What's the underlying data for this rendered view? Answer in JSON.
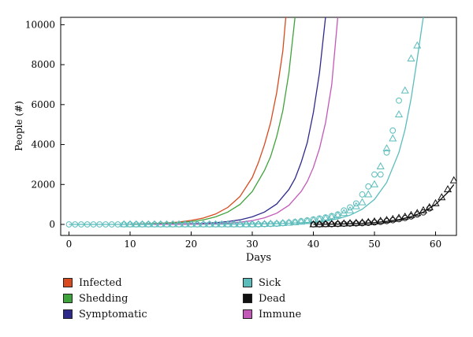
{
  "chart_data": {
    "type": "line",
    "xlabel": "Days",
    "ylabel": "People (#)",
    "xlim": [
      -1,
      63.5
    ],
    "ylim": [
      -250,
      10400
    ],
    "x_ticks": [
      0,
      10,
      20,
      30,
      40,
      50,
      60
    ],
    "y_ticks": [
      0,
      2000,
      4000,
      6000,
      8000,
      10000
    ],
    "grid": false,
    "legend_position": "bottom",
    "series": [
      {
        "name": "Infected",
        "color": "#d94a1e",
        "kind": "line",
        "x": [
          10,
          12,
          14,
          16,
          18,
          20,
          22,
          24,
          26,
          28,
          30,
          31,
          32,
          33,
          34,
          35,
          35.5
        ],
        "y": [
          10,
          25,
          45,
          75,
          120,
          200,
          320,
          520,
          850,
          1400,
          2350,
          3100,
          4000,
          5100,
          6600,
          8700,
          10400
        ]
      },
      {
        "name": "Shedding",
        "color": "#3fa33b",
        "kind": "line",
        "x": [
          10,
          12,
          14,
          16,
          18,
          20,
          22,
          24,
          26,
          28,
          30,
          32,
          33,
          34,
          35,
          36,
          37
        ],
        "y": [
          5,
          15,
          30,
          50,
          85,
          140,
          230,
          380,
          620,
          1000,
          1650,
          2700,
          3400,
          4400,
          5700,
          7600,
          10400
        ]
      },
      {
        "name": "Symptomatic",
        "color": "#2e2a8c",
        "kind": "line",
        "x": [
          12,
          14,
          16,
          18,
          20,
          22,
          24,
          26,
          28,
          30,
          32,
          34,
          36,
          37,
          38,
          39,
          40,
          41,
          42
        ],
        "y": [
          2,
          5,
          10,
          18,
          30,
          50,
          85,
          140,
          230,
          380,
          620,
          1020,
          1750,
          2300,
          3100,
          4100,
          5600,
          7600,
          10400
        ]
      },
      {
        "name": "Sick",
        "color": "#5bbcbc",
        "kind": "line",
        "x": [
          0,
          5,
          10,
          15,
          20,
          25,
          30,
          35,
          40,
          42,
          44,
          46,
          48,
          50,
          52,
          54,
          55,
          56,
          57,
          58
        ],
        "y": [
          0,
          0,
          0,
          2,
          5,
          10,
          20,
          45,
          110,
          170,
          280,
          460,
          760,
          1250,
          2100,
          3600,
          4750,
          6300,
          8300,
          10400
        ]
      },
      {
        "name": "Dead",
        "color": "#111111",
        "kind": "line",
        "x": [
          40,
          44,
          48,
          50,
          52,
          54,
          56,
          58,
          60,
          62,
          63
        ],
        "y": [
          0,
          15,
          50,
          90,
          150,
          240,
          390,
          620,
          1000,
          1600,
          2000
        ]
      },
      {
        "name": "Immune",
        "color": "#c458b8",
        "kind": "line",
        "x": [
          14,
          16,
          18,
          20,
          22,
          24,
          26,
          28,
          30,
          32,
          34,
          36,
          38,
          39,
          40,
          41,
          42,
          43,
          44
        ],
        "y": [
          1,
          3,
          6,
          12,
          22,
          38,
          65,
          110,
          190,
          330,
          560,
          960,
          1650,
          2150,
          2850,
          3800,
          5100,
          7000,
          10400
        ]
      },
      {
        "name": "",
        "color": "#5bbcbc",
        "kind": "circle",
        "x": [
          0,
          1,
          2,
          3,
          4,
          5,
          6,
          7,
          8,
          9,
          10,
          11,
          12,
          13,
          14,
          15,
          16,
          17,
          18,
          19,
          20,
          21,
          22,
          23,
          24,
          25,
          26,
          27,
          28,
          29,
          30,
          31,
          32,
          33,
          34,
          35,
          36,
          37,
          38,
          39,
          40,
          41,
          42,
          43,
          44,
          45,
          46,
          47,
          48,
          49,
          50,
          51,
          52,
          53,
          54
        ],
        "y": [
          0,
          0,
          0,
          0,
          0,
          0,
          0,
          0,
          0,
          0,
          0,
          0,
          0,
          0,
          0,
          0,
          0,
          0,
          0,
          0,
          0,
          0,
          0,
          0,
          0,
          0,
          0,
          0,
          0,
          0,
          0,
          0,
          10,
          20,
          30,
          60,
          90,
          120,
          160,
          200,
          250,
          300,
          350,
          420,
          500,
          700,
          850,
          1050,
          1500,
          1900,
          2500,
          2500,
          3600,
          4700,
          6200
        ]
      },
      {
        "name": "",
        "color": "#5bbcbc",
        "kind": "triangle",
        "x": [
          9,
          10,
          11,
          12,
          13,
          14,
          15,
          16,
          17,
          18,
          19,
          20,
          21,
          22,
          23,
          24,
          25,
          26,
          27,
          28,
          29,
          30,
          31,
          32,
          33,
          34,
          35,
          36,
          37,
          38,
          39,
          40,
          41,
          42,
          43,
          44,
          45,
          46,
          47,
          48,
          49,
          50,
          51,
          52,
          53,
          54,
          55,
          56,
          57
        ],
        "y": [
          0,
          0,
          0,
          0,
          0,
          0,
          0,
          0,
          0,
          0,
          0,
          0,
          0,
          0,
          0,
          0,
          0,
          0,
          0,
          0,
          0,
          0,
          10,
          20,
          30,
          40,
          60,
          80,
          100,
          130,
          160,
          200,
          240,
          300,
          370,
          450,
          560,
          700,
          900,
          1100,
          1500,
          2000,
          2900,
          3800,
          4300,
          5500,
          6700,
          8300,
          8950
        ]
      },
      {
        "name": "",
        "color": "#111111",
        "kind": "circle",
        "x": [
          40,
          41,
          42,
          43,
          44,
          45,
          46,
          47,
          48,
          49,
          50,
          51,
          52,
          53,
          54,
          55,
          56,
          57,
          58,
          59
        ],
        "y": [
          0,
          0,
          10,
          10,
          20,
          30,
          40,
          50,
          60,
          80,
          100,
          130,
          170,
          210,
          260,
          320,
          400,
          500,
          600,
          800
        ]
      },
      {
        "name": "",
        "color": "#111111",
        "kind": "triangle",
        "x": [
          40,
          41,
          42,
          43,
          44,
          45,
          46,
          47,
          48,
          49,
          50,
          51,
          52,
          53,
          54,
          55,
          56,
          57,
          58,
          59,
          60,
          61,
          62,
          63
        ],
        "y": [
          0,
          5,
          10,
          20,
          30,
          40,
          55,
          70,
          90,
          110,
          140,
          170,
          210,
          260,
          320,
          380,
          460,
          560,
          700,
          850,
          1050,
          1350,
          1750,
          2200
        ]
      }
    ],
    "legend": [
      {
        "label": "Infected",
        "color": "#d94a1e"
      },
      {
        "label": "Sick",
        "color": "#5bbcbc"
      },
      {
        "label": "Shedding",
        "color": "#3fa33b"
      },
      {
        "label": "Dead",
        "color": "#111111"
      },
      {
        "label": "Symptomatic",
        "color": "#2e2a8c"
      },
      {
        "label": "Immune",
        "color": "#c458b8"
      }
    ]
  }
}
